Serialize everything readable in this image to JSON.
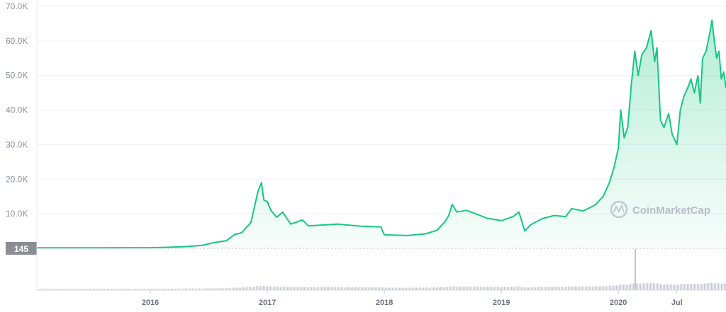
{
  "chart_data": {
    "type": "area",
    "title": "",
    "xlabel": "",
    "ylabel": "",
    "y_ticks": [
      "70.0K",
      "60.0K",
      "50.0K",
      "40.0K",
      "30.0K",
      "20.0K",
      "10.0K"
    ],
    "y_tick_values": [
      70000,
      60000,
      50000,
      40000,
      30000,
      20000,
      10000
    ],
    "ylim": [
      0,
      70000
    ],
    "x_ticks": [
      "2016",
      "2017",
      "2018",
      "2019",
      "2020",
      "Jul"
    ],
    "x_tick_values": [
      2016.0,
      2017.0,
      2018.0,
      2019.0,
      2020.0,
      2020.5
    ],
    "xlim": [
      2015.03,
      2020.92
    ],
    "current_price_label": "145",
    "current_price_value": 145,
    "watermark": "CoinMarketCap",
    "grid": true,
    "colors": {
      "line": "#16c784",
      "fill_top": "#16c784",
      "volume": "#c9cbd4",
      "label_bg": "#8b8d94"
    },
    "series": [
      {
        "values": [
          [
            2015.03,
            145
          ],
          [
            2015.3,
            150
          ],
          [
            2015.6,
            165
          ],
          [
            2015.85,
            185
          ],
          [
            2016.0,
            190
          ],
          [
            2016.15,
            310
          ],
          [
            2016.3,
            490
          ],
          [
            2016.45,
            900
          ],
          [
            2016.55,
            1700
          ],
          [
            2016.65,
            2200
          ],
          [
            2016.72,
            4000
          ],
          [
            2016.78,
            4500
          ],
          [
            2016.82,
            6000
          ],
          [
            2016.86,
            7500
          ],
          [
            2016.89,
            12000
          ],
          [
            2016.92,
            16500
          ],
          [
            2016.95,
            19000
          ],
          [
            2016.97,
            14000
          ],
          [
            2017.0,
            13500
          ],
          [
            2017.03,
            11000
          ],
          [
            2017.08,
            9000
          ],
          [
            2017.13,
            10500
          ],
          [
            2017.2,
            7000
          ],
          [
            2017.3,
            8200
          ],
          [
            2017.35,
            6500
          ],
          [
            2017.5,
            6800
          ],
          [
            2017.6,
            7000
          ],
          [
            2017.7,
            6700
          ],
          [
            2017.8,
            6400
          ],
          [
            2017.9,
            6300
          ],
          [
            2017.97,
            6200
          ],
          [
            2018.0,
            3900
          ],
          [
            2018.2,
            3700
          ],
          [
            2018.35,
            4200
          ],
          [
            2018.45,
            5200
          ],
          [
            2018.52,
            7800
          ],
          [
            2018.55,
            9500
          ],
          [
            2018.58,
            12700
          ],
          [
            2018.62,
            10500
          ],
          [
            2018.7,
            11000
          ],
          [
            2018.78,
            10000
          ],
          [
            2018.88,
            8700
          ],
          [
            2019.0,
            8000
          ],
          [
            2019.1,
            9200
          ],
          [
            2019.15,
            10500
          ],
          [
            2019.2,
            5000
          ],
          [
            2019.25,
            6800
          ],
          [
            2019.35,
            8600
          ],
          [
            2019.45,
            9500
          ],
          [
            2019.55,
            9200
          ],
          [
            2019.6,
            11500
          ],
          [
            2019.7,
            10800
          ],
          [
            2019.8,
            12500
          ],
          [
            2019.87,
            15000
          ],
          [
            2019.92,
            18700
          ],
          [
            2019.96,
            23000
          ],
          [
            2020.0,
            29000
          ],
          [
            2020.02,
            40000
          ],
          [
            2020.05,
            32000
          ],
          [
            2020.08,
            35000
          ],
          [
            2020.11,
            47000
          ],
          [
            2020.14,
            57000
          ],
          [
            2020.17,
            50000
          ],
          [
            2020.2,
            56000
          ],
          [
            2020.24,
            58000
          ],
          [
            2020.28,
            63000
          ],
          [
            2020.31,
            54000
          ],
          [
            2020.33,
            58000
          ],
          [
            2020.36,
            37000
          ],
          [
            2020.39,
            35000
          ],
          [
            2020.43,
            39000
          ],
          [
            2020.46,
            33000
          ],
          [
            2020.5,
            30000
          ],
          [
            2020.53,
            40000
          ],
          [
            2020.56,
            44000
          ],
          [
            2020.6,
            47000
          ],
          [
            2020.62,
            49000
          ],
          [
            2020.65,
            45000
          ],
          [
            2020.68,
            50000
          ],
          [
            2020.7,
            42000
          ],
          [
            2020.72,
            55000
          ],
          [
            2020.75,
            57000
          ],
          [
            2020.78,
            62000
          ],
          [
            2020.8,
            66000
          ],
          [
            2020.82,
            60000
          ],
          [
            2020.84,
            55000
          ],
          [
            2020.86,
            57000
          ],
          [
            2020.88,
            49000
          ],
          [
            2020.9,
            51000
          ],
          [
            2020.92,
            46500
          ]
        ]
      }
    ],
    "volume_spike_x": 2020.14
  }
}
